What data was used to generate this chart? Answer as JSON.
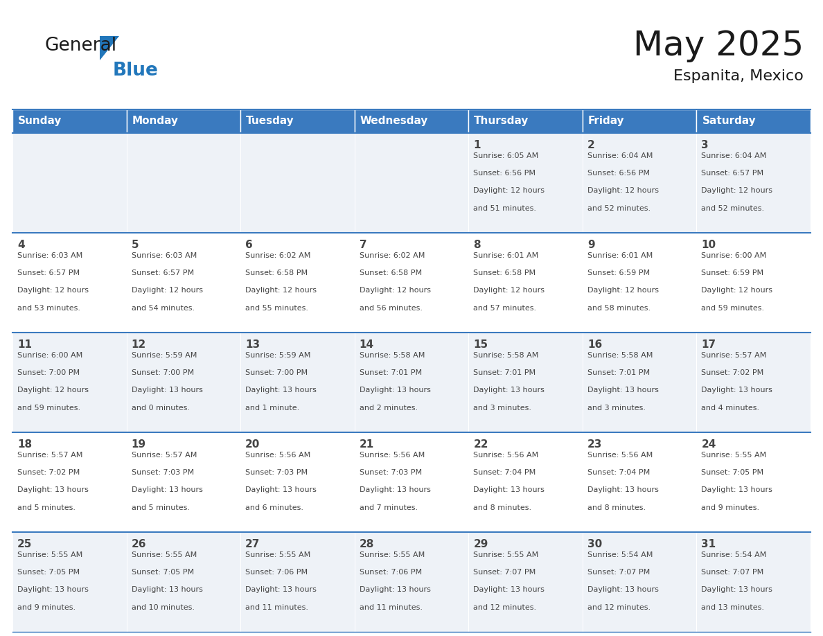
{
  "title": "May 2025",
  "subtitle": "Espanita, Mexico",
  "header_color": "#3a7abf",
  "header_text_color": "#ffffff",
  "day_names": [
    "Sunday",
    "Monday",
    "Tuesday",
    "Wednesday",
    "Thursday",
    "Friday",
    "Saturday"
  ],
  "days": [
    {
      "day": 1,
      "col": 4,
      "row": 0,
      "sunrise": "6:05 AM",
      "sunset": "6:56 PM",
      "daylight": "12 hours and 51 minutes."
    },
    {
      "day": 2,
      "col": 5,
      "row": 0,
      "sunrise": "6:04 AM",
      "sunset": "6:56 PM",
      "daylight": "12 hours and 52 minutes."
    },
    {
      "day": 3,
      "col": 6,
      "row": 0,
      "sunrise": "6:04 AM",
      "sunset": "6:57 PM",
      "daylight": "12 hours and 52 minutes."
    },
    {
      "day": 4,
      "col": 0,
      "row": 1,
      "sunrise": "6:03 AM",
      "sunset": "6:57 PM",
      "daylight": "12 hours and 53 minutes."
    },
    {
      "day": 5,
      "col": 1,
      "row": 1,
      "sunrise": "6:03 AM",
      "sunset": "6:57 PM",
      "daylight": "12 hours and 54 minutes."
    },
    {
      "day": 6,
      "col": 2,
      "row": 1,
      "sunrise": "6:02 AM",
      "sunset": "6:58 PM",
      "daylight": "12 hours and 55 minutes."
    },
    {
      "day": 7,
      "col": 3,
      "row": 1,
      "sunrise": "6:02 AM",
      "sunset": "6:58 PM",
      "daylight": "12 hours and 56 minutes."
    },
    {
      "day": 8,
      "col": 4,
      "row": 1,
      "sunrise": "6:01 AM",
      "sunset": "6:58 PM",
      "daylight": "12 hours and 57 minutes."
    },
    {
      "day": 9,
      "col": 5,
      "row": 1,
      "sunrise": "6:01 AM",
      "sunset": "6:59 PM",
      "daylight": "12 hours and 58 minutes."
    },
    {
      "day": 10,
      "col": 6,
      "row": 1,
      "sunrise": "6:00 AM",
      "sunset": "6:59 PM",
      "daylight": "12 hours and 59 minutes."
    },
    {
      "day": 11,
      "col": 0,
      "row": 2,
      "sunrise": "6:00 AM",
      "sunset": "7:00 PM",
      "daylight": "12 hours and 59 minutes."
    },
    {
      "day": 12,
      "col": 1,
      "row": 2,
      "sunrise": "5:59 AM",
      "sunset": "7:00 PM",
      "daylight": "13 hours and 0 minutes."
    },
    {
      "day": 13,
      "col": 2,
      "row": 2,
      "sunrise": "5:59 AM",
      "sunset": "7:00 PM",
      "daylight": "13 hours and 1 minute."
    },
    {
      "day": 14,
      "col": 3,
      "row": 2,
      "sunrise": "5:58 AM",
      "sunset": "7:01 PM",
      "daylight": "13 hours and 2 minutes."
    },
    {
      "day": 15,
      "col": 4,
      "row": 2,
      "sunrise": "5:58 AM",
      "sunset": "7:01 PM",
      "daylight": "13 hours and 3 minutes."
    },
    {
      "day": 16,
      "col": 5,
      "row": 2,
      "sunrise": "5:58 AM",
      "sunset": "7:01 PM",
      "daylight": "13 hours and 3 minutes."
    },
    {
      "day": 17,
      "col": 6,
      "row": 2,
      "sunrise": "5:57 AM",
      "sunset": "7:02 PM",
      "daylight": "13 hours and 4 minutes."
    },
    {
      "day": 18,
      "col": 0,
      "row": 3,
      "sunrise": "5:57 AM",
      "sunset": "7:02 PM",
      "daylight": "13 hours and 5 minutes."
    },
    {
      "day": 19,
      "col": 1,
      "row": 3,
      "sunrise": "5:57 AM",
      "sunset": "7:03 PM",
      "daylight": "13 hours and 5 minutes."
    },
    {
      "day": 20,
      "col": 2,
      "row": 3,
      "sunrise": "5:56 AM",
      "sunset": "7:03 PM",
      "daylight": "13 hours and 6 minutes."
    },
    {
      "day": 21,
      "col": 3,
      "row": 3,
      "sunrise": "5:56 AM",
      "sunset": "7:03 PM",
      "daylight": "13 hours and 7 minutes."
    },
    {
      "day": 22,
      "col": 4,
      "row": 3,
      "sunrise": "5:56 AM",
      "sunset": "7:04 PM",
      "daylight": "13 hours and 8 minutes."
    },
    {
      "day": 23,
      "col": 5,
      "row": 3,
      "sunrise": "5:56 AM",
      "sunset": "7:04 PM",
      "daylight": "13 hours and 8 minutes."
    },
    {
      "day": 24,
      "col": 6,
      "row": 3,
      "sunrise": "5:55 AM",
      "sunset": "7:05 PM",
      "daylight": "13 hours and 9 minutes."
    },
    {
      "day": 25,
      "col": 0,
      "row": 4,
      "sunrise": "5:55 AM",
      "sunset": "7:05 PM",
      "daylight": "13 hours and 9 minutes."
    },
    {
      "day": 26,
      "col": 1,
      "row": 4,
      "sunrise": "5:55 AM",
      "sunset": "7:05 PM",
      "daylight": "13 hours and 10 minutes."
    },
    {
      "day": 27,
      "col": 2,
      "row": 4,
      "sunrise": "5:55 AM",
      "sunset": "7:06 PM",
      "daylight": "13 hours and 11 minutes."
    },
    {
      "day": 28,
      "col": 3,
      "row": 4,
      "sunrise": "5:55 AM",
      "sunset": "7:06 PM",
      "daylight": "13 hours and 11 minutes."
    },
    {
      "day": 29,
      "col": 4,
      "row": 4,
      "sunrise": "5:55 AM",
      "sunset": "7:07 PM",
      "daylight": "13 hours and 12 minutes."
    },
    {
      "day": 30,
      "col": 5,
      "row": 4,
      "sunrise": "5:54 AM",
      "sunset": "7:07 PM",
      "daylight": "13 hours and 12 minutes."
    },
    {
      "day": 31,
      "col": 6,
      "row": 4,
      "sunrise": "5:54 AM",
      "sunset": "7:07 PM",
      "daylight": "13 hours and 13 minutes."
    }
  ],
  "num_rows": 5,
  "num_cols": 7,
  "logo_color_general": "#1a1a1a",
  "logo_color_blue": "#2277bb",
  "logo_triangle_color": "#2277bb",
  "title_color": "#1a1a1a",
  "cell_bg_colors": [
    "#eef2f7",
    "#ffffff"
  ],
  "text_color": "#444444",
  "line_color": "#3a7abf",
  "fig_width": 11.88,
  "fig_height": 9.18,
  "dpi": 100
}
